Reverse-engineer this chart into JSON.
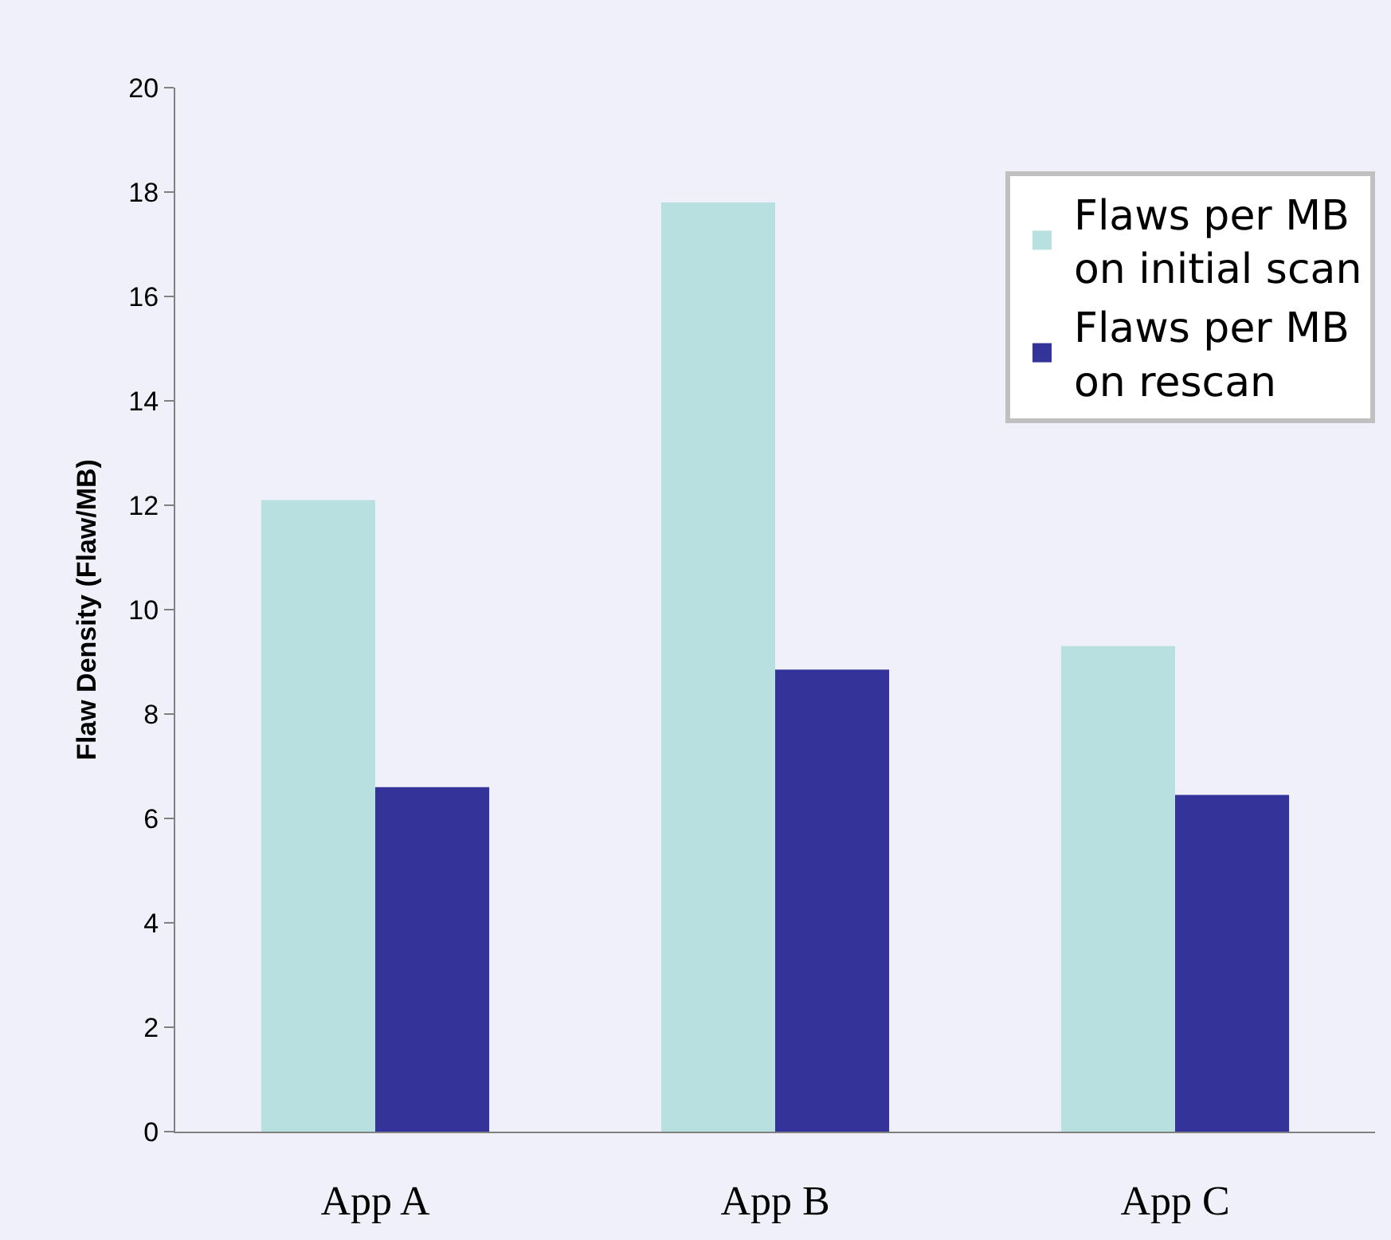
{
  "chart_data": {
    "type": "bar",
    "ylabel": "Flaw Density (Flaw/MB)",
    "categories": [
      "App A",
      "App B",
      "App C"
    ],
    "series": [
      {
        "name": "Flaws per MB\non initial scan",
        "color": "#b8e0e0",
        "values": [
          12.1,
          17.8,
          9.3
        ]
      },
      {
        "name": "Flaws per MB\non rescan",
        "color": "#333399",
        "values": [
          6.6,
          8.85,
          6.45
        ]
      }
    ],
    "ylim": [
      0,
      20
    ],
    "yticks": [
      0,
      2,
      4,
      6,
      8,
      10,
      12,
      14,
      16,
      18,
      20
    ],
    "grid": false,
    "legend": "top right"
  }
}
